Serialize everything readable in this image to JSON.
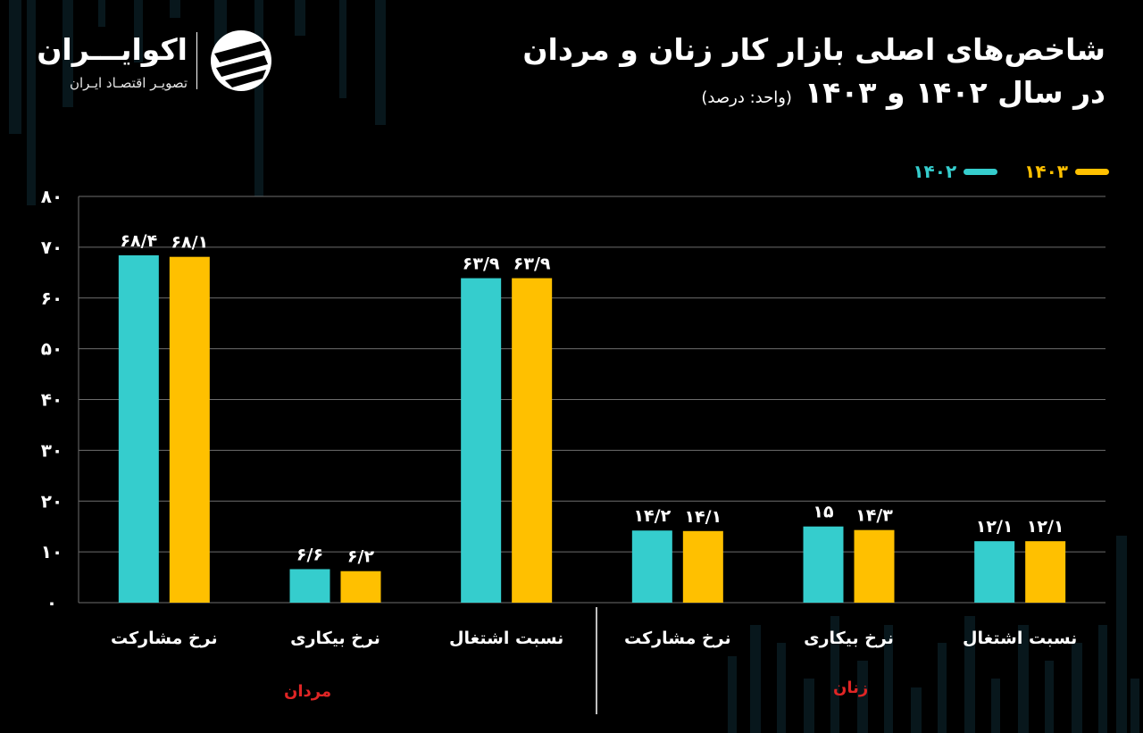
{
  "logo": {
    "name": "اکوایـــران",
    "tagline": "تصویـر اقتصـاد ایـران",
    "icon": "ecoiran-logo-icon"
  },
  "title": {
    "line1": "شاخص‌های اصلی بازار کار زنان و مردان",
    "line2": "در سال ۱۴۰۲ و ۱۴۰۳",
    "unit": "(واحد: درصد)"
  },
  "colors": {
    "background": "#000000",
    "series_1402": "#35cdcd",
    "series_1403": "#ffc000",
    "group_label": "#e02525",
    "grid": "#6e6e6e"
  },
  "groups": {
    "men": "مردان",
    "women": "زنان"
  },
  "chart_data": {
    "type": "bar",
    "title": "شاخص‌های اصلی بازار کار زنان و مردان در سال ۱۴۰۲ و ۱۴۰۳",
    "ylim": [
      0,
      80
    ],
    "yticks": [
      0,
      10,
      20,
      30,
      40,
      50,
      60,
      70,
      80
    ],
    "ytick_labels": [
      "۰",
      "۱۰",
      "۲۰",
      "۳۰",
      "۴۰",
      "۵۰",
      "۶۰",
      "۷۰",
      "۸۰"
    ],
    "grid": true,
    "legend": "top-right",
    "categories": [
      "نرخ مشارکت",
      "نرخ بیکاری",
      "نسبت اشتغال",
      "نرخ مشارکت",
      "نرخ بیکاری",
      "نسبت اشتغال"
    ],
    "category_groups": [
      "مردان",
      "مردان",
      "مردان",
      "زنان",
      "زنان",
      "زنان"
    ],
    "series": [
      {
        "name": "۱۴۰۲",
        "color": "#35cdcd",
        "values": [
          68.4,
          6.6,
          63.9,
          14.2,
          15.0,
          12.1
        ],
        "labels": [
          "۶۸/۴",
          "۶/۶",
          "۶۳/۹",
          "۱۴/۲",
          "۱۵",
          "۱۲/۱"
        ]
      },
      {
        "name": "۱۴۰۳",
        "color": "#ffc000",
        "values": [
          68.1,
          6.2,
          63.9,
          14.1,
          14.3,
          12.1
        ],
        "labels": [
          "۶۸/۱",
          "۶/۲",
          "۶۳/۹",
          "۱۴/۱",
          "۱۴/۳",
          "۱۲/۱"
        ]
      }
    ]
  }
}
